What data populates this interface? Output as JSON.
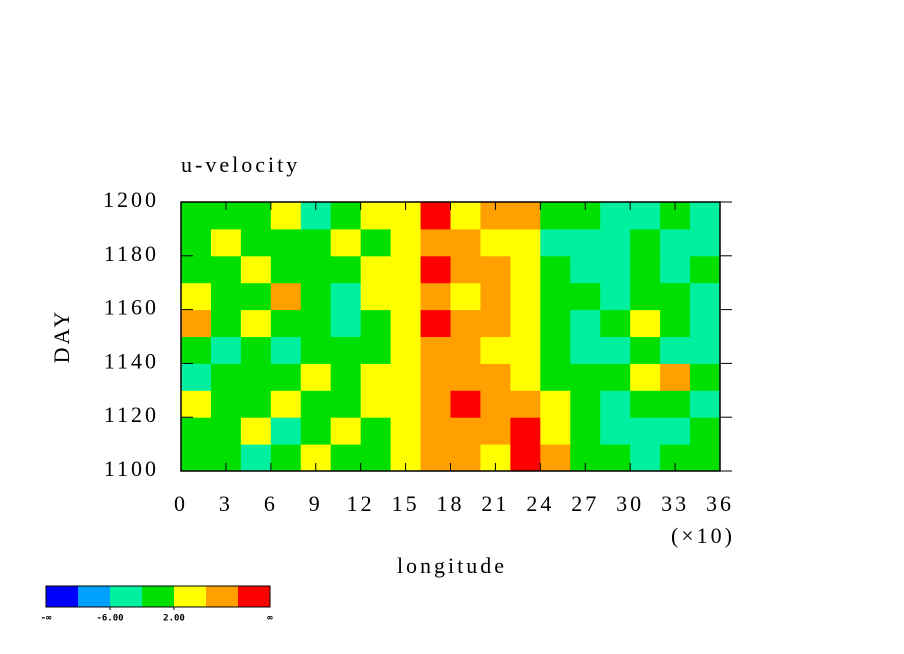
{
  "chart_data": {
    "type": "heatmap",
    "title": "u-velocity",
    "x_label": "longitude",
    "y_label": "DAY",
    "x_multiplier_label": "(×10)",
    "xlim": [
      0,
      36
    ],
    "xticks": [
      0,
      3,
      6,
      9,
      12,
      15,
      18,
      21,
      24,
      27,
      30,
      33,
      36
    ],
    "ylim": [
      1100,
      1200
    ],
    "yticks": [
      1100,
      1120,
      1140,
      1160,
      1180,
      1200
    ],
    "x": [
      1,
      3,
      5,
      7,
      9,
      11,
      13,
      15,
      17,
      19,
      21,
      23,
      25,
      27,
      29,
      31,
      33,
      35
    ],
    "y": [
      1105,
      1115,
      1125,
      1135,
      1145,
      1155,
      1165,
      1175,
      1185,
      1195
    ],
    "z": [
      [
        -2,
        0,
        -4,
        0,
        2,
        -2,
        0,
        4,
        8,
        6,
        4,
        10,
        6,
        0,
        -2,
        -4,
        0,
        -2
      ],
      [
        0,
        -2,
        2,
        -4,
        0,
        2,
        -2,
        2,
        6,
        8,
        6,
        10,
        4,
        -2,
        -6,
        -4,
        -6,
        -2
      ],
      [
        2,
        -2,
        0,
        2,
        -2,
        0,
        2,
        4,
        8,
        10,
        8,
        6,
        2,
        -2,
        -4,
        0,
        -2,
        -4
      ],
      [
        -4,
        0,
        -2,
        0,
        2,
        -2,
        4,
        2,
        6,
        8,
        6,
        4,
        0,
        -2,
        -2,
        2,
        8,
        0
      ],
      [
        -2,
        -6,
        0,
        -4,
        -2,
        0,
        -2,
        4,
        8,
        6,
        4,
        2,
        -2,
        -4,
        -6,
        -2,
        -4,
        -6
      ],
      [
        6,
        0,
        2,
        -2,
        0,
        -4,
        0,
        2,
        10,
        8,
        6,
        2,
        0,
        -4,
        -2,
        2,
        0,
        -4
      ],
      [
        2,
        -2,
        -2,
        6,
        -2,
        -6,
        2,
        4,
        8,
        4,
        8,
        2,
        -2,
        -2,
        -4,
        0,
        -2,
        -4
      ],
      [
        0,
        -2,
        2,
        -2,
        0,
        -2,
        2,
        4,
        10,
        6,
        8,
        4,
        0,
        -4,
        -6,
        -2,
        -4,
        -2
      ],
      [
        -2,
        2,
        -2,
        0,
        -2,
        4,
        -2,
        2,
        8,
        6,
        4,
        2,
        -4,
        -6,
        -4,
        -2,
        -6,
        -4
      ],
      [
        -2,
        0,
        -2,
        2,
        -4,
        0,
        2,
        2,
        10,
        4,
        8,
        6,
        0,
        -2,
        -4,
        -4,
        -2,
        -6
      ]
    ],
    "colorbar": {
      "colors": [
        "#0000ff",
        "#00a0ff",
        "#00f0a0",
        "#00e000",
        "#ffff00",
        "#ffa000",
        "#ff0000"
      ],
      "boundaries": [
        -10,
        -6,
        -2,
        2,
        6,
        10
      ],
      "ticks": [
        {
          "value": -6,
          "label": "-6.00"
        },
        {
          "value": 2,
          "label": "2.00"
        }
      ],
      "min_label": "-∞",
      "max_label": "∞"
    }
  }
}
